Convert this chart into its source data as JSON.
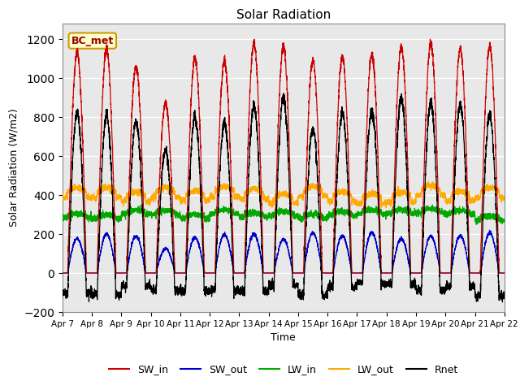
{
  "title": "Solar Radiation",
  "xlabel": "Time",
  "ylabel": "Solar Radiation (W/m2)",
  "ylim": [
    -200,
    1280
  ],
  "yticks": [
    -200,
    0,
    200,
    400,
    600,
    800,
    1000,
    1200
  ],
  "n_days": 15,
  "day_start": 7,
  "annotation_text": "BC_met",
  "colors": {
    "SW_in": "#cc0000",
    "SW_out": "#0000cc",
    "LW_in": "#00aa00",
    "LW_out": "#ffaa00",
    "Rnet": "#000000"
  },
  "legend_labels": [
    "SW_in",
    "SW_out",
    "LW_in",
    "LW_out",
    "Rnet"
  ],
  "background_color": "#ffffff",
  "plot_bg_color": "#e8e8e8",
  "grid_color": "#ffffff"
}
